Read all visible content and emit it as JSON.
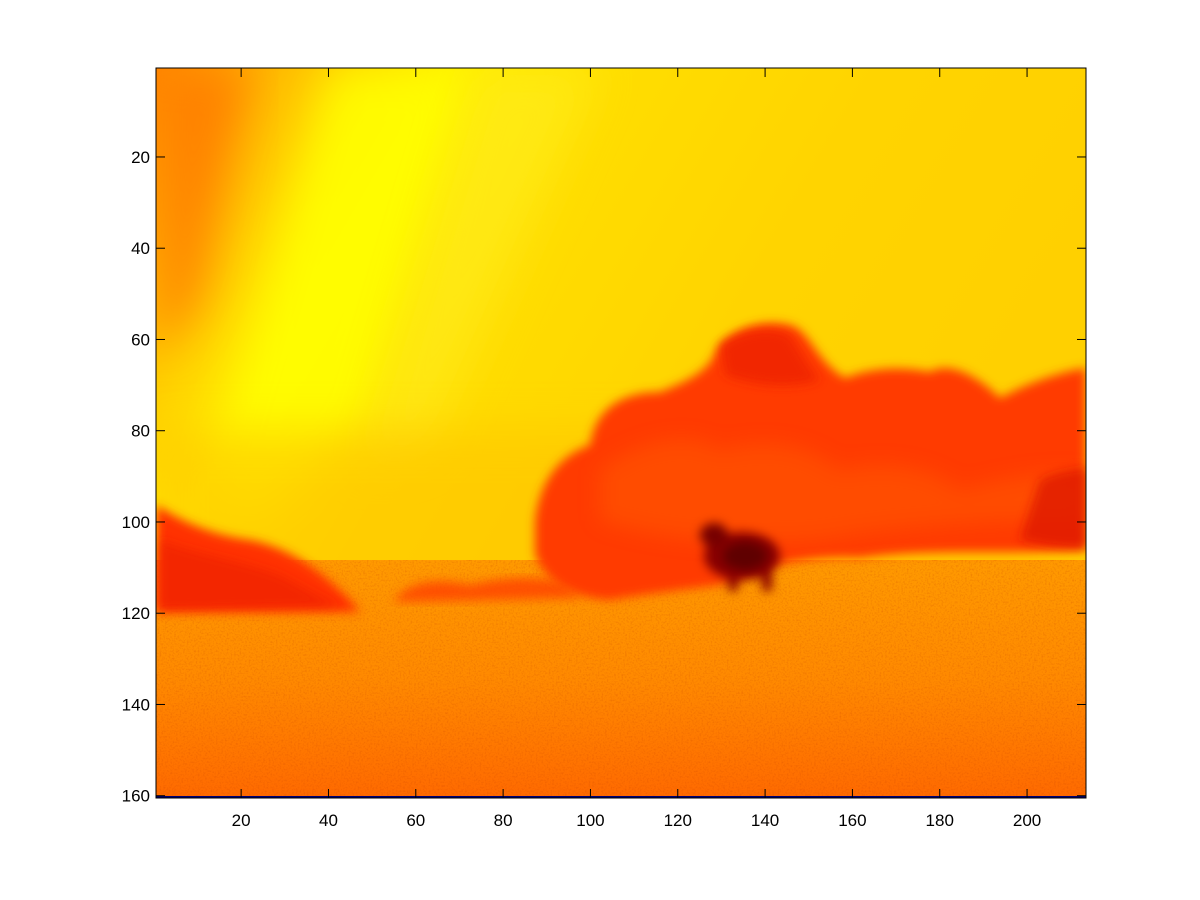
{
  "chart_data": {
    "type": "heatmap",
    "title": "",
    "xlabel": "",
    "ylabel": "",
    "xlim": [
      0.5,
      213.5
    ],
    "ylim": [
      0.5,
      160.5
    ],
    "y_direction": "reverse",
    "grid": false,
    "colormap": "hot",
    "x_ticks": [
      20,
      40,
      60,
      80,
      100,
      120,
      140,
      160,
      180,
      200
    ],
    "x_tick_labels": [
      "20",
      "40",
      "60",
      "80",
      "100",
      "120",
      "140",
      "160",
      "180",
      "200"
    ],
    "y_ticks": [
      20,
      40,
      60,
      80,
      100,
      120,
      140,
      160
    ],
    "y_tick_labels": [
      "20",
      "40",
      "60",
      "80",
      "100",
      "120",
      "140",
      "160"
    ],
    "image_content": "false-colour landscape: bright yellow sky with diagonal light bands, red-orange trees on the right, dark red animal silhouette near x≈135 y≈108, orange field in the lower part",
    "bottom_row_value": "dark blue (lowest colormap value) in row 160",
    "colors": {
      "yellow": "#ffee00",
      "orange": "#ff9900",
      "red": "#ff3300",
      "dark_red": "#660000",
      "navy": "#000070"
    }
  }
}
